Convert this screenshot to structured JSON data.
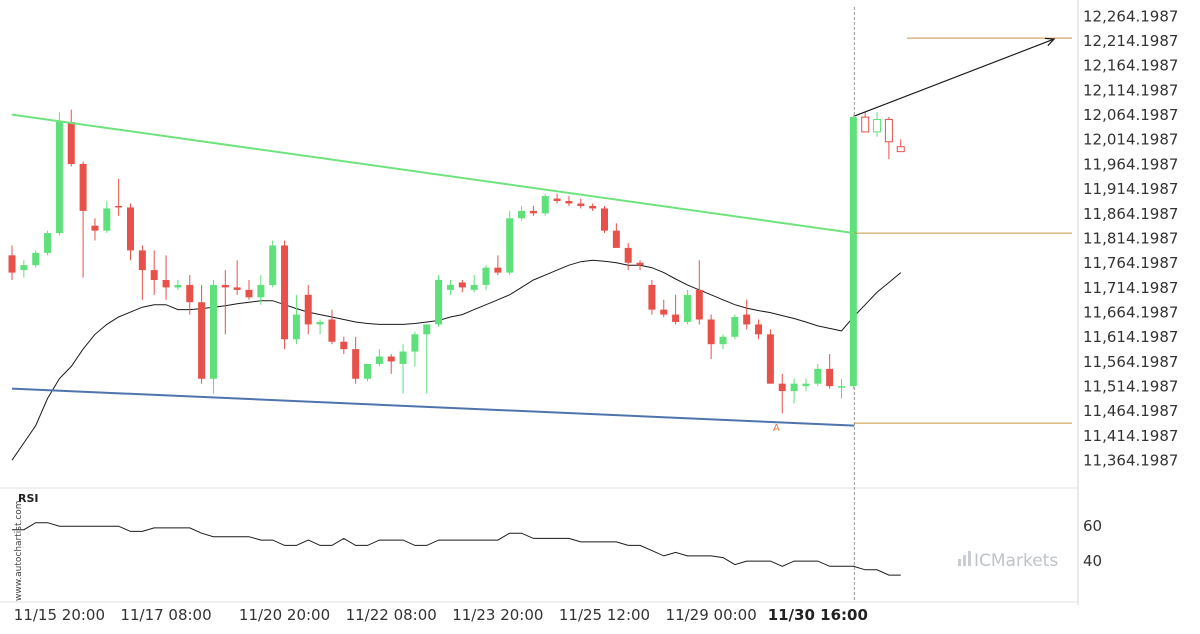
{
  "watermark": "www.autochartist.com",
  "brand": {
    "prefix": "IC",
    "name": "Markets"
  },
  "pattern_label": "A",
  "chart_data": {
    "type": "candlestick",
    "title": "",
    "y_ticks": [
      12264.1987,
      12214.1987,
      12164.1987,
      12114.1987,
      12064.1987,
      12014.1987,
      11964.1987,
      11914.1987,
      11864.1987,
      11814.1987,
      11764.1987,
      11714.1987,
      11664.1987,
      11614.1987,
      11564.1987,
      11514.1987,
      11464.1987,
      11414.1987,
      11364.1987
    ],
    "y_tick_labels": [
      "12,264.1987",
      "12,214.1987",
      "12,164.1987",
      "12,114.1987",
      "12,064.1987",
      "12,014.1987",
      "11,964.1987",
      "11,914.1987",
      "11,864.1987",
      "11,814.1987",
      "11,764.1987",
      "11,714.1987",
      "11,664.1987",
      "11,614.1987",
      "11,564.1987",
      "11,514.1987",
      "11,464.1987",
      "11,414.1987",
      "11,364.1987"
    ],
    "ylim": [
      11333,
      12283
    ],
    "x_tick_labels": [
      "11/15 20:00",
      "11/17 08:00",
      "11/20 20:00",
      "11/22 08:00",
      "11/23 20:00",
      "11/25 12:00",
      "11/29 00:00",
      "11/30 16:00"
    ],
    "x_tick_index": [
      4,
      13,
      23,
      32,
      41,
      50,
      59,
      68
    ],
    "highlight_x_label": "11/30 16:00",
    "candles": [
      [
        11780,
        11800,
        11730,
        11745
      ],
      [
        11750,
        11770,
        11735,
        11760
      ],
      [
        11760,
        11790,
        11755,
        11785
      ],
      [
        11785,
        11830,
        11780,
        11825
      ],
      [
        11825,
        12070,
        11820,
        12050
      ],
      [
        12050,
        12075,
        11960,
        11965
      ],
      [
        11965,
        11970,
        11735,
        11870
      ],
      [
        11840,
        11855,
        11810,
        11830
      ],
      [
        11830,
        11890,
        11825,
        11875
      ],
      [
        11880,
        11935,
        11860,
        11877
      ],
      [
        11877,
        11885,
        11770,
        11790
      ],
      [
        11790,
        11800,
        11690,
        11750
      ],
      [
        11750,
        11790,
        11700,
        11730
      ],
      [
        11730,
        11780,
        11690,
        11715
      ],
      [
        11715,
        11730,
        11710,
        11720
      ],
      [
        11720,
        11740,
        11660,
        11685
      ],
      [
        11685,
        11720,
        11520,
        11530
      ],
      [
        11530,
        11730,
        11500,
        11720
      ],
      [
        11720,
        11750,
        11620,
        11715
      ],
      [
        11715,
        11770,
        11700,
        11710
      ],
      [
        11710,
        11730,
        11690,
        11695
      ],
      [
        11695,
        11740,
        11680,
        11720
      ],
      [
        11720,
        11810,
        11715,
        11800
      ],
      [
        11800,
        11810,
        11590,
        11610
      ],
      [
        11610,
        11700,
        11600,
        11660
      ],
      [
        11700,
        11720,
        11620,
        11640
      ],
      [
        11640,
        11650,
        11620,
        11645
      ],
      [
        11650,
        11670,
        11600,
        11605
      ],
      [
        11605,
        11615,
        11580,
        11590
      ],
      [
        11590,
        11615,
        11520,
        11530
      ],
      [
        11530,
        11560,
        11525,
        11560
      ],
      [
        11560,
        11590,
        11555,
        11575
      ],
      [
        11575,
        11580,
        11540,
        11565
      ],
      [
        11560,
        11600,
        11500,
        11585
      ],
      [
        11585,
        11625,
        11555,
        11620
      ],
      [
        11620,
        11640,
        11500,
        11640
      ],
      [
        11640,
        11740,
        11635,
        11730
      ],
      [
        11710,
        11730,
        11700,
        11720
      ],
      [
        11725,
        11730,
        11705,
        11715
      ],
      [
        11710,
        11740,
        11705,
        11720
      ],
      [
        11720,
        11760,
        11710,
        11755
      ],
      [
        11755,
        11780,
        11740,
        11745
      ],
      [
        11745,
        11870,
        11740,
        11855
      ],
      [
        11855,
        11880,
        11850,
        11870
      ],
      [
        11870,
        11880,
        11860,
        11865
      ],
      [
        11865,
        11905,
        11860,
        11900
      ],
      [
        11895,
        11905,
        11885,
        11890
      ],
      [
        11890,
        11900,
        11880,
        11885
      ],
      [
        11885,
        11895,
        11875,
        11880
      ],
      [
        11880,
        11885,
        11870,
        11875
      ],
      [
        11875,
        11880,
        11825,
        11830
      ],
      [
        11830,
        11845,
        11795,
        11795
      ],
      [
        11795,
        11805,
        11750,
        11765
      ],
      [
        11765,
        11770,
        11750,
        11760
      ],
      [
        11720,
        11730,
        11660,
        11670
      ],
      [
        11670,
        11690,
        11655,
        11660
      ],
      [
        11660,
        11700,
        11640,
        11645
      ],
      [
        11645,
        11710,
        11640,
        11700
      ],
      [
        11710,
        11770,
        11640,
        11650
      ],
      [
        11650,
        11660,
        11570,
        11600
      ],
      [
        11600,
        11620,
        11590,
        11615
      ],
      [
        11615,
        11660,
        11610,
        11655
      ],
      [
        11660,
        11690,
        11630,
        11640
      ],
      [
        11640,
        11650,
        11610,
        11620
      ],
      [
        11620,
        11630,
        11520,
        11520
      ],
      [
        11520,
        11540,
        11460,
        11505
      ],
      [
        11505,
        11530,
        11480,
        11520
      ],
      [
        11515,
        11530,
        11505,
        11520
      ],
      [
        11520,
        11560,
        11515,
        11550
      ],
      [
        11550,
        11580,
        11510,
        11515
      ],
      [
        11515,
        11530,
        11490,
        11515
      ],
      [
        11515,
        12065,
        11510,
        12060
      ],
      [
        12060,
        12070,
        12030,
        12030
      ],
      [
        12030,
        12070,
        12020,
        12055
      ],
      [
        12055,
        12060,
        11975,
        12010
      ],
      [
        12000,
        12015,
        11990,
        11990
      ]
    ],
    "moving_average": [
      11365,
      11400,
      11435,
      11490,
      11530,
      11555,
      11590,
      11620,
      11640,
      11655,
      11665,
      11675,
      11680,
      11680,
      11670,
      11670,
      11672,
      11675,
      11678,
      11682,
      11685,
      11688,
      11688,
      11680,
      11672,
      11665,
      11660,
      11655,
      11650,
      11645,
      11642,
      11640,
      11640,
      11640,
      11642,
      11645,
      11648,
      11655,
      11660,
      11670,
      11680,
      11690,
      11700,
      11715,
      11730,
      11740,
      11750,
      11760,
      11767,
      11770,
      11768,
      11765,
      11760,
      11760,
      11755,
      11745,
      11732,
      11720,
      11710,
      11700,
      11690,
      11680,
      11673,
      11668,
      11664,
      11658,
      11652,
      11645,
      11637,
      11632,
      11627,
      11655,
      11680,
      11705,
      11725,
      11745
    ],
    "rsi": [
      58,
      58,
      62,
      62,
      60,
      60,
      60,
      60,
      60,
      60,
      57,
      57,
      59,
      59,
      59,
      59,
      56,
      54,
      54,
      54,
      54,
      52,
      52,
      49,
      49,
      52,
      49,
      49,
      53,
      49,
      49,
      52,
      52,
      52,
      49,
      49,
      52,
      52,
      52,
      52,
      52,
      52,
      56,
      56,
      53,
      53,
      53,
      53,
      51,
      51,
      51,
      51,
      49,
      49,
      46,
      43,
      45,
      43,
      43,
      43,
      42,
      38,
      40,
      40,
      40,
      37,
      40,
      40,
      40,
      37,
      37,
      37,
      35,
      35,
      32,
      32
    ],
    "rsi_ticks": [
      60,
      40
    ],
    "rsi_range": [
      20,
      75
    ]
  }
}
